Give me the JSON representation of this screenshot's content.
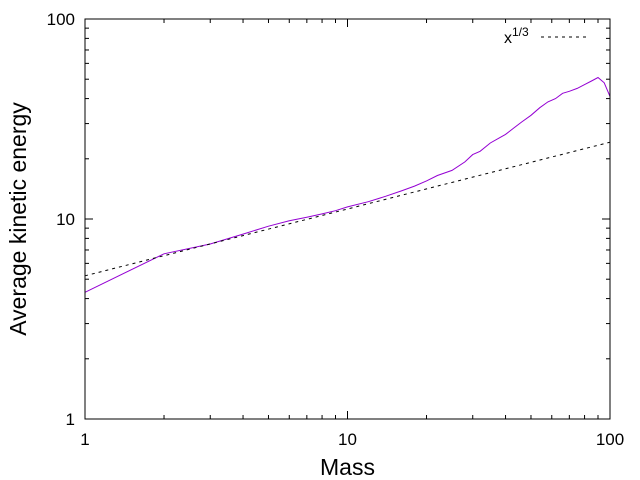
{
  "chart_data": {
    "type": "line",
    "xlabel": "Mass",
    "ylabel": "Average kinetic energy",
    "xscale": "log",
    "yscale": "log",
    "xlim": [
      1,
      100
    ],
    "ylim": [
      1,
      100
    ],
    "x_ticks": [
      1,
      10,
      100
    ],
    "y_ticks": [
      1,
      10,
      100
    ],
    "x_tick_labels": [
      "1",
      "10",
      "100"
    ],
    "y_tick_labels": [
      "1",
      "10",
      "100"
    ],
    "grid": false,
    "legend_position": "top-right",
    "series": [
      {
        "name": "",
        "color": "#9400d3",
        "style": "solid",
        "points": [
          [
            1,
            4.3
          ],
          [
            2,
            6.7
          ],
          [
            3,
            7.5
          ],
          [
            4,
            8.4
          ],
          [
            5,
            9.2
          ],
          [
            6,
            9.8
          ],
          [
            7,
            10.2
          ],
          [
            8,
            10.6
          ],
          [
            9,
            11.0
          ],
          [
            10,
            11.5
          ],
          [
            12,
            12.2
          ],
          [
            14,
            13.0
          ],
          [
            16,
            13.8
          ],
          [
            18,
            14.6
          ],
          [
            20,
            15.5
          ],
          [
            22,
            16.5
          ],
          [
            25,
            17.5
          ],
          [
            28,
            19.3
          ],
          [
            30,
            21.0
          ],
          [
            32,
            21.8
          ],
          [
            35,
            24.0
          ],
          [
            38,
            25.5
          ],
          [
            40,
            26.5
          ],
          [
            43,
            28.5
          ],
          [
            46,
            30.5
          ],
          [
            50,
            33.0
          ],
          [
            54,
            36.0
          ],
          [
            58,
            38.5
          ],
          [
            62,
            40.0
          ],
          [
            66,
            42.5
          ],
          [
            70,
            43.5
          ],
          [
            75,
            45.0
          ],
          [
            80,
            47.0
          ],
          [
            85,
            49.0
          ],
          [
            90,
            51.0
          ],
          [
            95,
            48.0
          ],
          [
            100,
            41.0
          ]
        ]
      },
      {
        "name": "x^{1/3}",
        "color": "#000000",
        "style": "dashed",
        "points": [
          [
            1,
            5.2
          ],
          [
            100,
            24.2
          ]
        ]
      }
    ]
  },
  "legend": {
    "entries": [
      {
        "base": "x",
        "superscript": "1/3",
        "color": "#000000",
        "style": "dashed"
      }
    ]
  }
}
